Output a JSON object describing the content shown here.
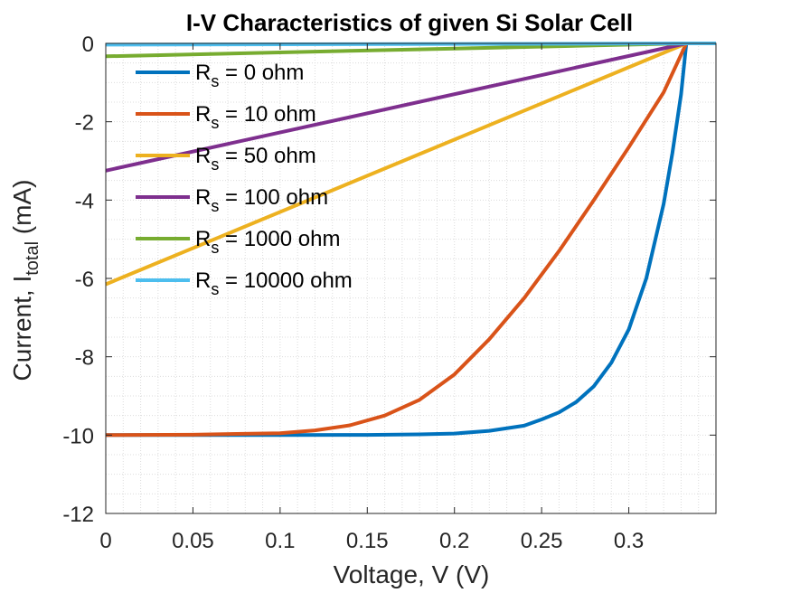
{
  "colors": {
    "series": [
      "#0072BD",
      "#D95319",
      "#EDB120",
      "#7E2F8E",
      "#77AC30",
      "#4DBEEE"
    ],
    "axis": "#262626",
    "grid": "#dcdcdc"
  },
  "chart_data": {
    "type": "line",
    "title": "I-V Characteristics of given Si Solar Cell",
    "xlabel": "Voltage, V (V)",
    "ylabel_main": "Current, I",
    "ylabel_sub": "total",
    "ylabel_unit": " (mA)",
    "xlim": [
      0,
      0.35
    ],
    "ylim": [
      -12,
      0
    ],
    "xticks": [
      0,
      0.05,
      0.1,
      0.15,
      0.2,
      0.25,
      0.3
    ],
    "xtick_labels": [
      "0",
      "0.05",
      "0.1",
      "0.15",
      "0.2",
      "0.25",
      "0.3"
    ],
    "yticks": [
      0,
      -2,
      -4,
      -6,
      -8,
      -10,
      -12
    ],
    "ytick_labels": [
      "0",
      "-2",
      "-4",
      "-6",
      "-8",
      "-10",
      "-12"
    ],
    "grid": "minor dotted",
    "legend_position": "upper-left",
    "series": [
      {
        "name_main": "R",
        "name_sub": "s",
        "name_rest": " = 0 ohm",
        "x": [
          0,
          0.05,
          0.1,
          0.15,
          0.18,
          0.2,
          0.22,
          0.24,
          0.25,
          0.26,
          0.27,
          0.28,
          0.29,
          0.3,
          0.31,
          0.32,
          0.325,
          0.33,
          0.333
        ],
        "y": [
          -10,
          -10,
          -10,
          -9.995,
          -9.98,
          -9.96,
          -9.89,
          -9.76,
          -9.6,
          -9.42,
          -9.15,
          -8.75,
          -8.15,
          -7.3,
          -6.0,
          -4.1,
          -2.8,
          -1.3,
          0
        ]
      },
      {
        "name_main": "R",
        "name_sub": "s",
        "name_rest": " = 10 ohm",
        "x": [
          0,
          0.05,
          0.1,
          0.12,
          0.14,
          0.16,
          0.18,
          0.2,
          0.22,
          0.24,
          0.26,
          0.28,
          0.3,
          0.32,
          0.333
        ],
        "y": [
          -10,
          -9.99,
          -9.95,
          -9.88,
          -9.75,
          -9.5,
          -9.1,
          -8.45,
          -7.55,
          -6.5,
          -5.3,
          -4.0,
          -2.65,
          -1.25,
          0
        ]
      },
      {
        "name_main": "R",
        "name_sub": "s",
        "name_rest": " = 50 ohm",
        "x": [
          0,
          0.333
        ],
        "y": [
          -6.15,
          0
        ]
      },
      {
        "name_main": "R",
        "name_sub": "s",
        "name_rest": " = 100 ohm",
        "x": [
          0,
          0.333
        ],
        "y": [
          -3.25,
          0
        ]
      },
      {
        "name_main": "R",
        "name_sub": "s",
        "name_rest": " = 1000 ohm",
        "x": [
          0,
          0.333
        ],
        "y": [
          -0.33,
          0
        ]
      },
      {
        "name_main": "R",
        "name_sub": "s",
        "name_rest": " = 10000 ohm",
        "x": [
          0,
          0.35
        ],
        "y": [
          -0.033,
          0
        ]
      }
    ]
  }
}
